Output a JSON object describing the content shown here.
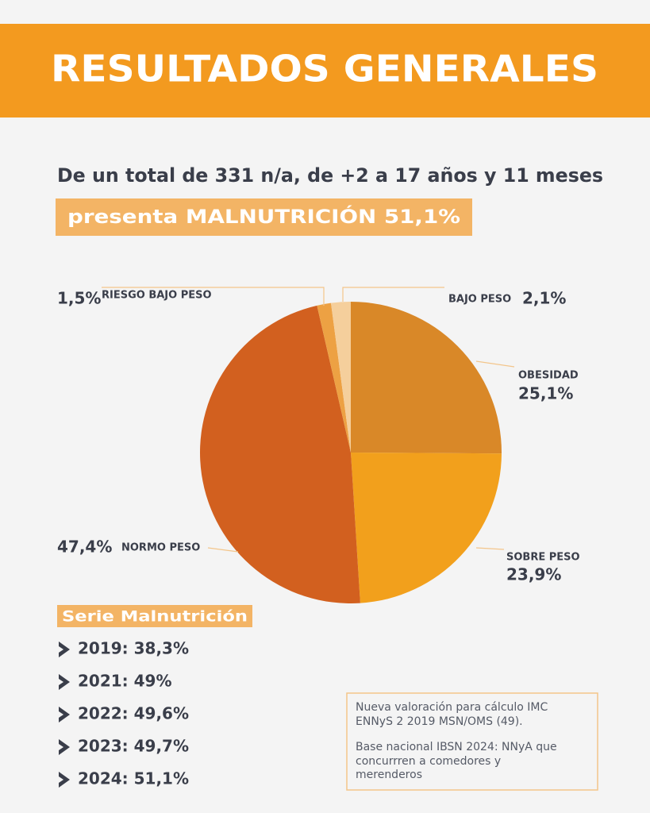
{
  "header": {
    "title": "RESULTADOS GENERALES"
  },
  "intro": {
    "text": "De un total de 331 n/a, de +2 a 17 años y 11 meses",
    "highlight": "presenta MALNUTRICIÓN 51,1%"
  },
  "chart_data": {
    "type": "pie",
    "categories": [
      "OBESIDAD",
      "SOBRE PESO",
      "NORMO PESO",
      "RIESGO BAJO PESO",
      "BAJO PESO"
    ],
    "values": [
      25.1,
      23.9,
      47.4,
      1.5,
      2.1
    ],
    "value_labels": [
      "25,1%",
      "23,9%",
      "47,4%",
      "1,5%",
      "2,1%"
    ],
    "colors": [
      "#d98828",
      "#f2a01c",
      "#d2601f",
      "#eda143",
      "#f5cf9c"
    ]
  },
  "series_list": {
    "title": "Serie Malnutrición",
    "items": [
      "2019: 38,3%",
      "2021: 49%",
      "2022: 49,6%",
      "2023: 49,7%",
      "2024: 51,1%"
    ]
  },
  "note": {
    "lines": [
      "Nueva valoración para cálculo IMC",
      "ENNyS 2 2019 MSN/OMS (49).",
      "Base nacional IBSN 2024: NNyA que",
      "concurrren a comedores y",
      "merenderos"
    ]
  }
}
